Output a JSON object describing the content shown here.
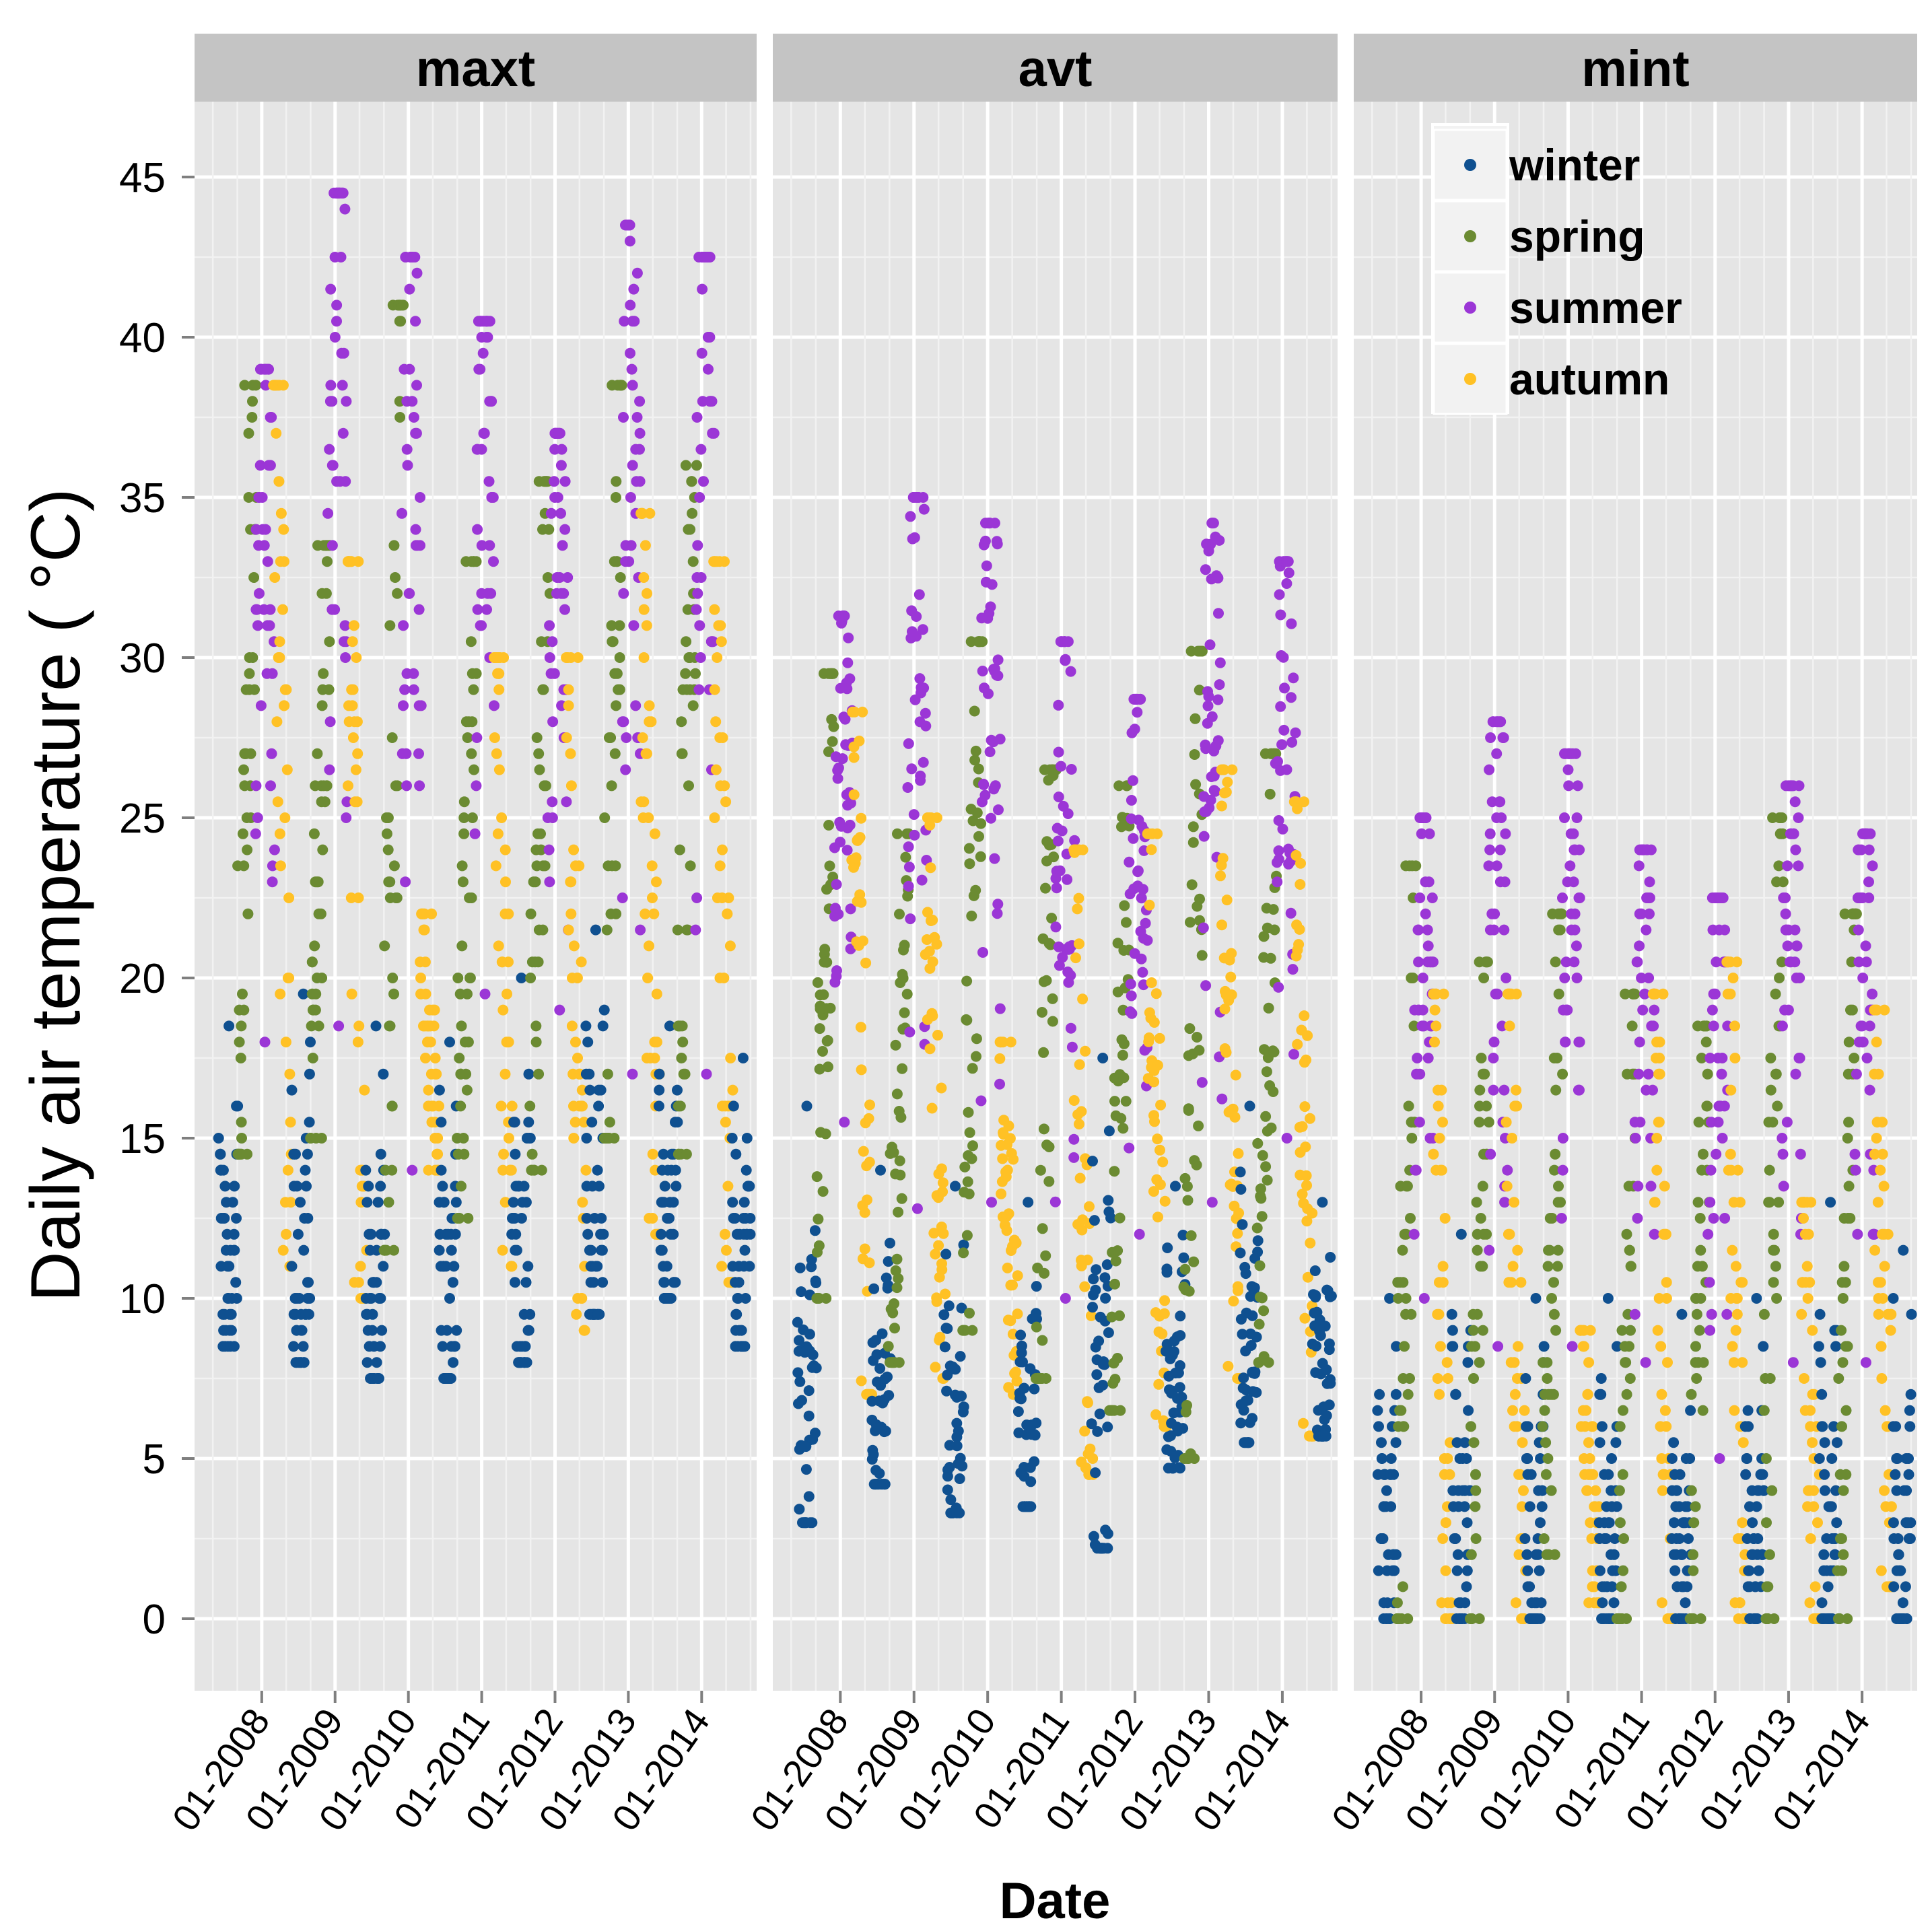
{
  "chart_data": {
    "type": "scatter",
    "facets": [
      "maxt",
      "avt",
      "mint"
    ],
    "xlabel": "Date",
    "ylabel": "Daily air temperature ( °C)",
    "ylim": [
      -2.2,
      47.3
    ],
    "xlim": [
      "2007-02",
      "2014-10"
    ],
    "y_ticks": [
      0,
      5,
      10,
      15,
      20,
      25,
      30,
      35,
      40,
      45
    ],
    "x_tick_labels": [
      "01-2008",
      "01-2009",
      "01-2010",
      "01-2011",
      "01-2012",
      "01-2013",
      "01-2014"
    ],
    "grid": true,
    "legend": {
      "placement": "top-right (inside mint panel)",
      "entries": [
        "winter",
        "spring",
        "summer",
        "autumn"
      ]
    },
    "colors": {
      "winter": "#0f5090",
      "spring": "#6b8b32",
      "summer": "#9b36d6",
      "autumn": "#ffc125",
      "panel_background": "#e5e5e5",
      "strip_background": "#c4c4c4"
    },
    "block_fields": [
      "season",
      "start_month",
      "min",
      "max"
    ],
    "panels": [
      {
        "name": "maxt",
        "blocks": [
          [
            "winter",
            "2007-06",
            8.5,
            18.5
          ],
          [
            "spring",
            "2007-09",
            14.5,
            38.5
          ],
          [
            "summer",
            "2007-12",
            18,
            39
          ],
          [
            "autumn",
            "2008-03",
            11,
            38.5
          ],
          [
            "winter",
            "2008-06",
            8,
            19.5
          ],
          [
            "spring",
            "2008-09",
            15,
            33.5
          ],
          [
            "summer",
            "2008-12",
            18.5,
            44.5
          ],
          [
            "autumn",
            "2009-03",
            10,
            33
          ],
          [
            "winter",
            "2009-06",
            7.5,
            18.5
          ],
          [
            "spring",
            "2009-09",
            11.5,
            41
          ],
          [
            "summer",
            "2009-12",
            14,
            42.5
          ],
          [
            "autumn",
            "2010-03",
            14,
            22
          ],
          [
            "winter",
            "2010-06",
            7.5,
            18
          ],
          [
            "spring",
            "2010-09",
            12.5,
            33
          ],
          [
            "summer",
            "2010-12",
            19.5,
            40.5
          ],
          [
            "autumn",
            "2011-03",
            11,
            30
          ],
          [
            "winter",
            "2011-06",
            8,
            20
          ],
          [
            "spring",
            "2011-09",
            14,
            35.5
          ],
          [
            "summer",
            "2011-12",
            19,
            37
          ],
          [
            "autumn",
            "2012-03",
            9,
            30
          ],
          [
            "winter",
            "2012-06",
            9.5,
            21.5
          ],
          [
            "spring",
            "2012-09",
            15,
            38.5
          ],
          [
            "summer",
            "2012-12",
            17,
            43.5
          ],
          [
            "autumn",
            "2013-03",
            12,
            34.5
          ],
          [
            "winter",
            "2013-06",
            10,
            18.5
          ],
          [
            "spring",
            "2013-09",
            14.5,
            36
          ],
          [
            "summer",
            "2013-12",
            17,
            42.5
          ],
          [
            "autumn",
            "2014-03",
            10.5,
            33
          ],
          [
            "winter",
            "2014-06",
            8.5,
            17.5
          ]
        ]
      },
      {
        "name": "avt",
        "blocks": [
          [
            "winter",
            "2007-06",
            3,
            16
          ],
          [
            "spring",
            "2007-09",
            10,
            29.5
          ],
          [
            "summer",
            "2007-12",
            15.5,
            31.3
          ],
          [
            "autumn",
            "2008-03",
            7,
            28.3
          ],
          [
            "winter",
            "2008-06",
            4.2,
            14
          ],
          [
            "spring",
            "2008-09",
            8,
            24.5
          ],
          [
            "summer",
            "2008-12",
            12.8,
            35
          ],
          [
            "autumn",
            "2009-03",
            7.5,
            25
          ],
          [
            "winter",
            "2009-06",
            3.3,
            13.5
          ],
          [
            "spring",
            "2009-09",
            9,
            30.5
          ],
          [
            "summer",
            "2009-12",
            13,
            34.2
          ],
          [
            "autumn",
            "2010-03",
            7,
            18
          ],
          [
            "winter",
            "2010-06",
            3.5,
            13
          ],
          [
            "spring",
            "2010-09",
            7.5,
            26.5
          ],
          [
            "summer",
            "2010-12",
            10,
            30.5
          ],
          [
            "autumn",
            "2011-03",
            4.5,
            24
          ],
          [
            "winter",
            "2011-06",
            2.2,
            17.5
          ],
          [
            "spring",
            "2011-09",
            6.5,
            26
          ],
          [
            "summer",
            "2011-12",
            12,
            28.7
          ],
          [
            "autumn",
            "2012-03",
            6,
            24.5
          ],
          [
            "winter",
            "2012-06",
            4.7,
            13.5
          ],
          [
            "spring",
            "2012-09",
            5,
            30.2
          ],
          [
            "summer",
            "2012-12",
            13,
            34.2
          ],
          [
            "autumn",
            "2013-03",
            7.5,
            26.5
          ],
          [
            "winter",
            "2013-06",
            5.5,
            16
          ],
          [
            "spring",
            "2013-09",
            8,
            27
          ],
          [
            "summer",
            "2013-12",
            15,
            33
          ],
          [
            "autumn",
            "2014-03",
            5.7,
            25.5
          ],
          [
            "winter",
            "2014-06",
            5.7,
            13
          ]
        ]
      },
      {
        "name": "mint",
        "blocks": [
          [
            "winter",
            "2007-06",
            0,
            10
          ],
          [
            "spring",
            "2007-09",
            0,
            23.5
          ],
          [
            "summer",
            "2007-12",
            10,
            25
          ],
          [
            "autumn",
            "2008-03",
            0,
            19.5
          ],
          [
            "winter",
            "2008-06",
            0,
            12
          ],
          [
            "spring",
            "2008-09",
            0,
            20.5
          ],
          [
            "summer",
            "2008-12",
            8.5,
            28
          ],
          [
            "autumn",
            "2009-03",
            0,
            19.5
          ],
          [
            "winter",
            "2009-06",
            0,
            10
          ],
          [
            "spring",
            "2009-09",
            2,
            22
          ],
          [
            "summer",
            "2009-12",
            8.5,
            27
          ],
          [
            "autumn",
            "2010-03",
            0.5,
            9
          ],
          [
            "winter",
            "2010-06",
            0,
            10
          ],
          [
            "spring",
            "2010-09",
            0,
            19.5
          ],
          [
            "summer",
            "2010-12",
            8,
            24
          ],
          [
            "autumn",
            "2011-03",
            0,
            19.5
          ],
          [
            "winter",
            "2011-06",
            0,
            9.5
          ],
          [
            "spring",
            "2011-09",
            0,
            18.5
          ],
          [
            "summer",
            "2011-12",
            5,
            22.5
          ],
          [
            "autumn",
            "2012-03",
            0,
            20.5
          ],
          [
            "winter",
            "2012-06",
            0,
            10
          ],
          [
            "spring",
            "2012-09",
            0,
            25
          ],
          [
            "summer",
            "2012-12",
            8,
            26
          ],
          [
            "autumn",
            "2013-03",
            0,
            13
          ],
          [
            "winter",
            "2013-06",
            0,
            13
          ],
          [
            "spring",
            "2013-09",
            0,
            22
          ],
          [
            "summer",
            "2013-12",
            8,
            24.5
          ],
          [
            "autumn",
            "2014-03",
            1,
            19
          ],
          [
            "winter",
            "2014-06",
            0,
            11.5
          ]
        ]
      }
    ]
  }
}
